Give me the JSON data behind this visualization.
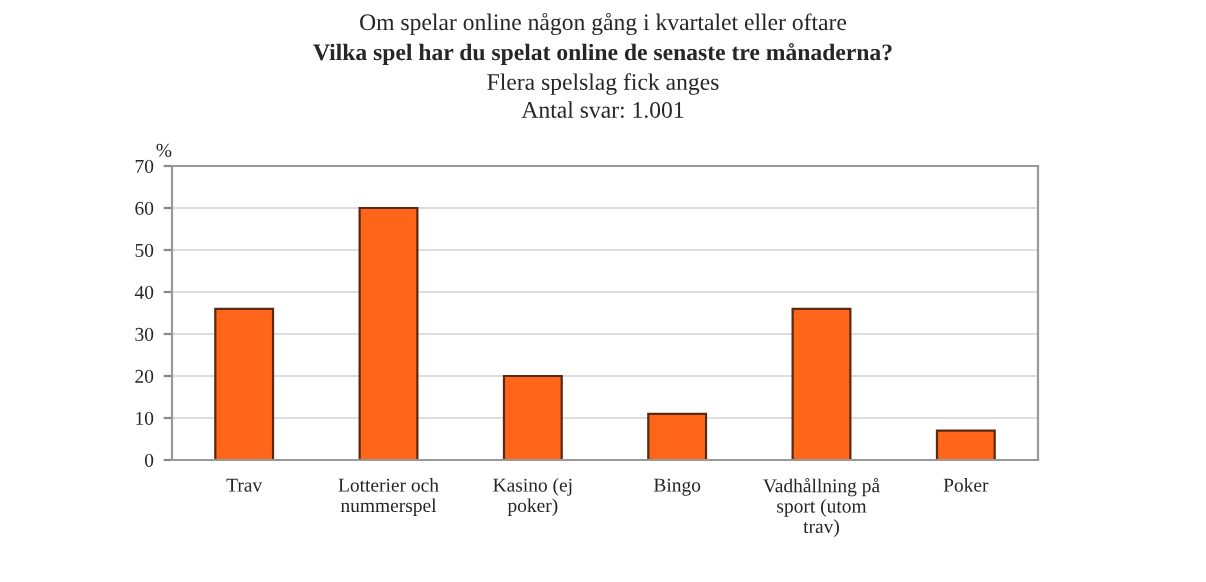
{
  "chart_data": {
    "type": "bar",
    "subtitle": "Om spelar online någon gång i kvartalet eller oftare",
    "title": "Vilka spel har du spelat online de senaste tre månaderna?",
    "annotations": [
      "Flera spelslag fick anges",
      "Antal svar: 1.001"
    ],
    "ylabel": "%",
    "categories": [
      "Trav",
      "Lotterier och\nnummerspel",
      "Kasino (ej\npoker)",
      "Bingo",
      "Vadhållning på\nsport (utom\ntrav)",
      "Poker"
    ],
    "values": [
      36,
      60,
      20,
      11,
      36,
      7
    ],
    "color": "#ff6619",
    "ylim": [
      0,
      70
    ],
    "yticks": [
      0,
      10,
      20,
      30,
      40,
      50,
      60,
      70
    ],
    "grid": "y",
    "legend": false
  }
}
